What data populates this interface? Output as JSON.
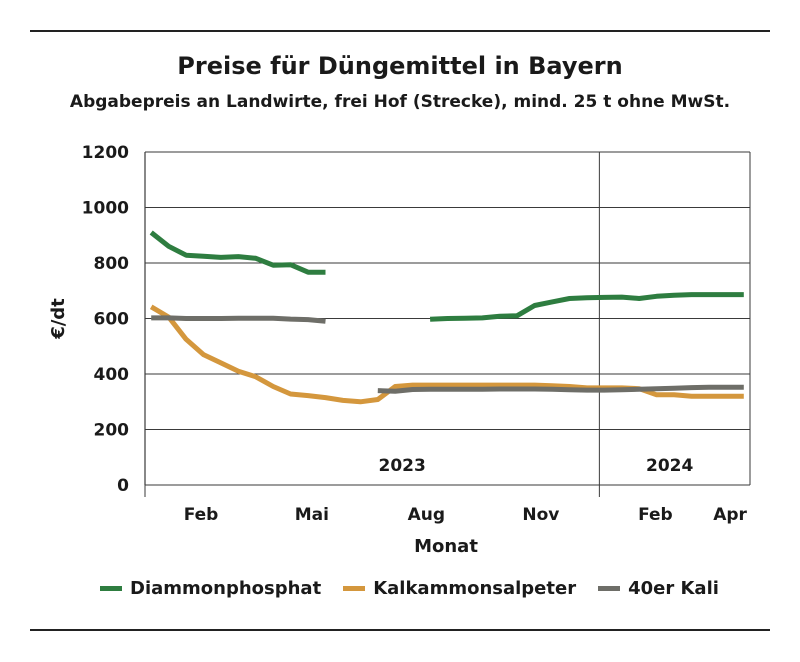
{
  "title": "Preise für Düngemittel in Bayern",
  "subtitle": "Abgabepreis an Landwirte, frei Hof (Strecke), mind. 25 t ohne MwSt.",
  "chart_data": {
    "type": "line",
    "title": "Preise für Düngemittel in Bayern",
    "subtitle": "Abgabepreis an Landwirte, frei Hof (Strecke), mind. 25 t ohne MwSt.",
    "xlabel": "Monat",
    "ylabel": "€/dt",
    "ylim": [
      0,
      1200
    ],
    "yticks": [
      0,
      200,
      400,
      600,
      800,
      1000,
      1200
    ],
    "xlim": [
      "2023-01-01",
      "2024-05-01"
    ],
    "xticks": [
      {
        "date": "2023-02-15",
        "label": "Feb"
      },
      {
        "date": "2023-05-15",
        "label": "Mai"
      },
      {
        "date": "2023-08-15",
        "label": "Aug"
      },
      {
        "date": "2023-11-15",
        "label": "Nov"
      },
      {
        "date": "2024-02-15",
        "label": "Feb"
      },
      {
        "date": "2024-04-15",
        "label": "Apr"
      }
    ],
    "year_labels": [
      {
        "label": "2023"
      },
      {
        "label": "2024"
      }
    ],
    "year_separator": "2024-01-01",
    "grid": true,
    "legend_position": "bottom",
    "series": [
      {
        "name": "Diammonphosphat",
        "color": "#2e7d40",
        "segments": [
          [
            [
              "2023-01-06",
              910
            ],
            [
              "2023-01-20",
              860
            ],
            [
              "2023-02-03",
              828
            ],
            [
              "2023-02-17",
              824
            ],
            [
              "2023-03-03",
              820
            ],
            [
              "2023-03-17",
              823
            ],
            [
              "2023-03-31",
              817
            ],
            [
              "2023-04-14",
              792
            ],
            [
              "2023-04-28",
              794
            ],
            [
              "2023-05-12",
              767
            ],
            [
              "2023-05-26",
              767
            ]
          ],
          [
            [
              "2023-08-18",
              597
            ],
            [
              "2023-09-01",
              600
            ],
            [
              "2023-09-15",
              601
            ],
            [
              "2023-09-29",
              602
            ],
            [
              "2023-10-13",
              608
            ],
            [
              "2023-10-27",
              610
            ],
            [
              "2023-11-10",
              647
            ],
            [
              "2023-11-24",
              660
            ],
            [
              "2023-12-08",
              672
            ],
            [
              "2023-12-22",
              675
            ],
            [
              "2024-01-05",
              676
            ],
            [
              "2024-01-19",
              677
            ],
            [
              "2024-02-02",
              672
            ],
            [
              "2024-02-16",
              680
            ],
            [
              "2024-03-01",
              684
            ],
            [
              "2024-03-15",
              686
            ],
            [
              "2024-03-29",
              686
            ],
            [
              "2024-04-12",
              686
            ],
            [
              "2024-04-26",
              686
            ]
          ]
        ]
      },
      {
        "name": "Kalkammonsalpeter",
        "color": "#d4973d",
        "segments": [
          [
            [
              "2023-01-06",
              642
            ],
            [
              "2023-01-20",
              605
            ],
            [
              "2023-02-03",
              525
            ],
            [
              "2023-02-17",
              470
            ],
            [
              "2023-03-03",
              440
            ],
            [
              "2023-03-17",
              410
            ],
            [
              "2023-03-31",
              390
            ],
            [
              "2023-04-14",
              355
            ],
            [
              "2023-04-28",
              328
            ],
            [
              "2023-05-12",
              322
            ],
            [
              "2023-05-26",
              315
            ],
            [
              "2023-06-09",
              305
            ],
            [
              "2023-06-23",
              300
            ],
            [
              "2023-07-07",
              308
            ],
            [
              "2023-07-21",
              355
            ],
            [
              "2023-08-04",
              360
            ],
            [
              "2023-08-18",
              360
            ],
            [
              "2023-09-01",
              360
            ],
            [
              "2023-09-15",
              360
            ],
            [
              "2023-09-29",
              360
            ],
            [
              "2023-10-13",
              360
            ],
            [
              "2023-10-27",
              360
            ],
            [
              "2023-11-10",
              360
            ],
            [
              "2023-11-24",
              358
            ],
            [
              "2023-12-08",
              355
            ],
            [
              "2023-12-22",
              350
            ],
            [
              "2024-01-05",
              350
            ],
            [
              "2024-01-19",
              350
            ],
            [
              "2024-02-02",
              347
            ],
            [
              "2024-02-16",
              325
            ],
            [
              "2024-03-01",
              325
            ],
            [
              "2024-03-15",
              320
            ],
            [
              "2024-03-29",
              320
            ],
            [
              "2024-04-12",
              320
            ],
            [
              "2024-04-26",
              320
            ]
          ]
        ]
      },
      {
        "name": "40er Kali",
        "color": "#6e6e68",
        "segments": [
          [
            [
              "2023-01-06",
              602
            ],
            [
              "2023-01-20",
              602
            ],
            [
              "2023-02-03",
              600
            ],
            [
              "2023-02-17",
              600
            ],
            [
              "2023-03-03",
              600
            ],
            [
              "2023-03-17",
              601
            ],
            [
              "2023-03-31",
              601
            ],
            [
              "2023-04-14",
              601
            ],
            [
              "2023-04-28",
              598
            ],
            [
              "2023-05-12",
              596
            ],
            [
              "2023-05-26",
              590
            ]
          ],
          [
            [
              "2023-07-07",
              340
            ],
            [
              "2023-07-21",
              338
            ],
            [
              "2023-08-04",
              344
            ],
            [
              "2023-08-18",
              345
            ],
            [
              "2023-09-01",
              345
            ],
            [
              "2023-09-15",
              345
            ],
            [
              "2023-09-29",
              345
            ],
            [
              "2023-10-13",
              346
            ],
            [
              "2023-10-27",
              346
            ],
            [
              "2023-11-10",
              346
            ],
            [
              "2023-11-24",
              345
            ],
            [
              "2023-12-08",
              343
            ],
            [
              "2023-12-22",
              342
            ],
            [
              "2024-01-05",
              342
            ],
            [
              "2024-01-19",
              343
            ],
            [
              "2024-02-02",
              345
            ],
            [
              "2024-02-16",
              347
            ],
            [
              "2024-03-01",
              349
            ],
            [
              "2024-03-15",
              351
            ],
            [
              "2024-03-29",
              352
            ],
            [
              "2024-04-12",
              352
            ],
            [
              "2024-04-26",
              352
            ]
          ]
        ]
      }
    ]
  }
}
